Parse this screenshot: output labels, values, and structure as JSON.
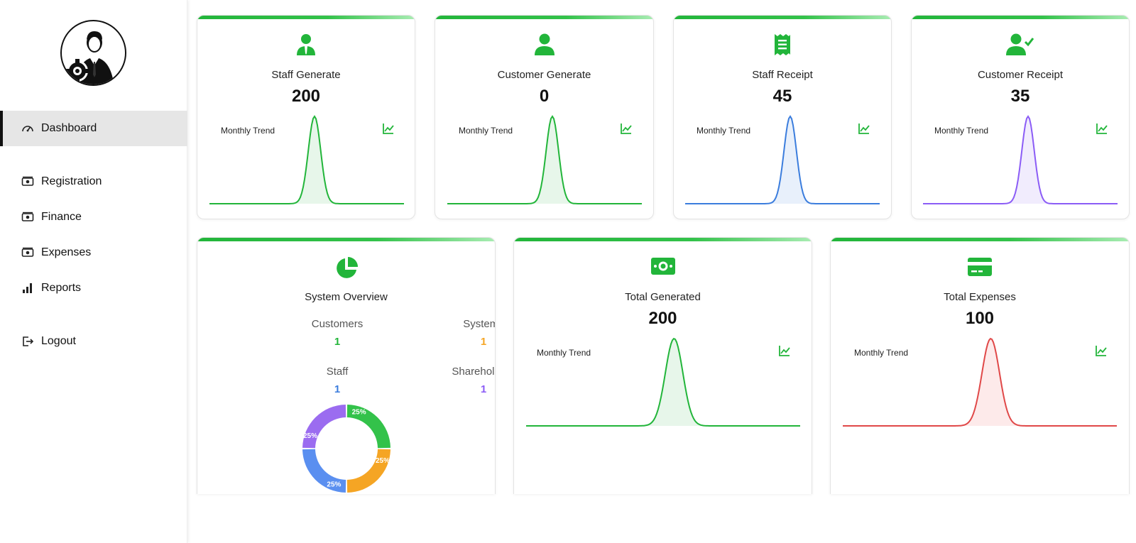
{
  "sidebar": {
    "items": [
      {
        "label": "Dashboard",
        "icon": "gauge-icon"
      },
      {
        "label": "Registration",
        "icon": "cash-icon"
      },
      {
        "label": "Finance",
        "icon": "cash-icon"
      },
      {
        "label": "Expenses",
        "icon": "cash-icon"
      },
      {
        "label": "Reports",
        "icon": "bar-chart-icon"
      },
      {
        "label": "Logout",
        "icon": "logout-icon"
      }
    ]
  },
  "cards": [
    {
      "title": "Staff Generate",
      "value": "200",
      "trend_label": "Monthly Trend",
      "icon": "staff-icon",
      "color": "#22b53a",
      "fill": "#e7f6ea"
    },
    {
      "title": "Customer Generate",
      "value": "0",
      "trend_label": "Monthly Trend",
      "icon": "user-icon",
      "color": "#22b53a",
      "fill": "#e7f6ea"
    },
    {
      "title": "Staff Receipt",
      "value": "45",
      "trend_label": "Monthly Trend",
      "icon": "receipt-icon",
      "color": "#3b7ddd",
      "fill": "#e8f0fb"
    },
    {
      "title": "Customer Receipt",
      "value": "35",
      "trend_label": "Monthly Trend",
      "icon": "user-check-icon",
      "color": "#8b5cf6",
      "fill": "#f1ecfd"
    },
    {
      "title": "Total Generated",
      "value": "200",
      "trend_label": "Monthly Trend",
      "icon": "money-icon",
      "color": "#22b53a",
      "fill": "#e7f6ea"
    },
    {
      "title": "Total Expenses",
      "value": "100",
      "trend_label": "Monthly Trend",
      "icon": "credit-card-icon",
      "color": "#e04848",
      "fill": "#fdeaea"
    }
  ],
  "overview": {
    "title": "System Overview",
    "icon": "pie-chart-icon",
    "stats": [
      {
        "label": "Customers",
        "value": "1",
        "color": "#22b53a"
      },
      {
        "label": "Systems",
        "value": "1",
        "color": "#f5a524"
      },
      {
        "label": "Staff",
        "value": "1",
        "color": "#3b7ddd"
      },
      {
        "label": "Shareholders",
        "value": "1",
        "color": "#8b5cf6"
      }
    ],
    "donut": [
      {
        "label": "25%",
        "value": 25,
        "color": "#33c24a"
      },
      {
        "label": "25%",
        "value": 25,
        "color": "#f5a524"
      },
      {
        "label": "25%",
        "value": 25,
        "color": "#5a8ff0"
      },
      {
        "label": "25%",
        "value": 25,
        "color": "#9b6cf0"
      }
    ]
  },
  "colors": {
    "accent": "#22b53a",
    "icon_green": "#22b53a"
  }
}
